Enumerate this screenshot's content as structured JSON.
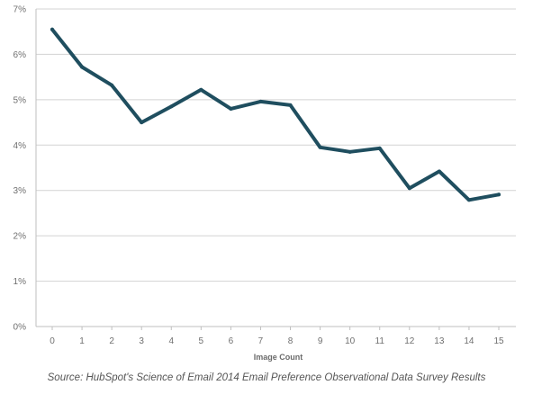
{
  "chart_data": {
    "type": "line",
    "xlabel": "Image Count",
    "ylabel": "",
    "x": [
      0,
      1,
      2,
      3,
      4,
      5,
      6,
      7,
      8,
      9,
      10,
      11,
      12,
      13,
      14,
      15
    ],
    "x_tick_labels": [
      "0",
      "1",
      "2",
      "3",
      "4",
      "5",
      "6",
      "7",
      "8",
      "9",
      "10",
      "11",
      "12",
      "13",
      "14",
      "15"
    ],
    "series": [
      {
        "values": [
          6.55,
          5.72,
          5.32,
          4.5,
          4.85,
          5.22,
          4.8,
          4.96,
          4.88,
          3.95,
          3.85,
          3.93,
          3.05,
          3.42,
          2.79,
          2.91
        ],
        "color": "#1f4e5f"
      }
    ],
    "ylim": [
      0,
      7
    ],
    "y_ticks": [
      0,
      1,
      2,
      3,
      4,
      5,
      6,
      7
    ],
    "y_tick_labels": [
      "0%",
      "1%",
      "2%",
      "3%",
      "4%",
      "5%",
      "6%",
      "7%"
    ],
    "grid": "horizontal",
    "colors": {
      "grid": "#d3d3d3",
      "axis": "#bfbfbf",
      "line": "#1f4e5f"
    }
  },
  "source_note": "Source: HubSpot's Science of Email 2014 Email Preference Observational Data Survey Results"
}
